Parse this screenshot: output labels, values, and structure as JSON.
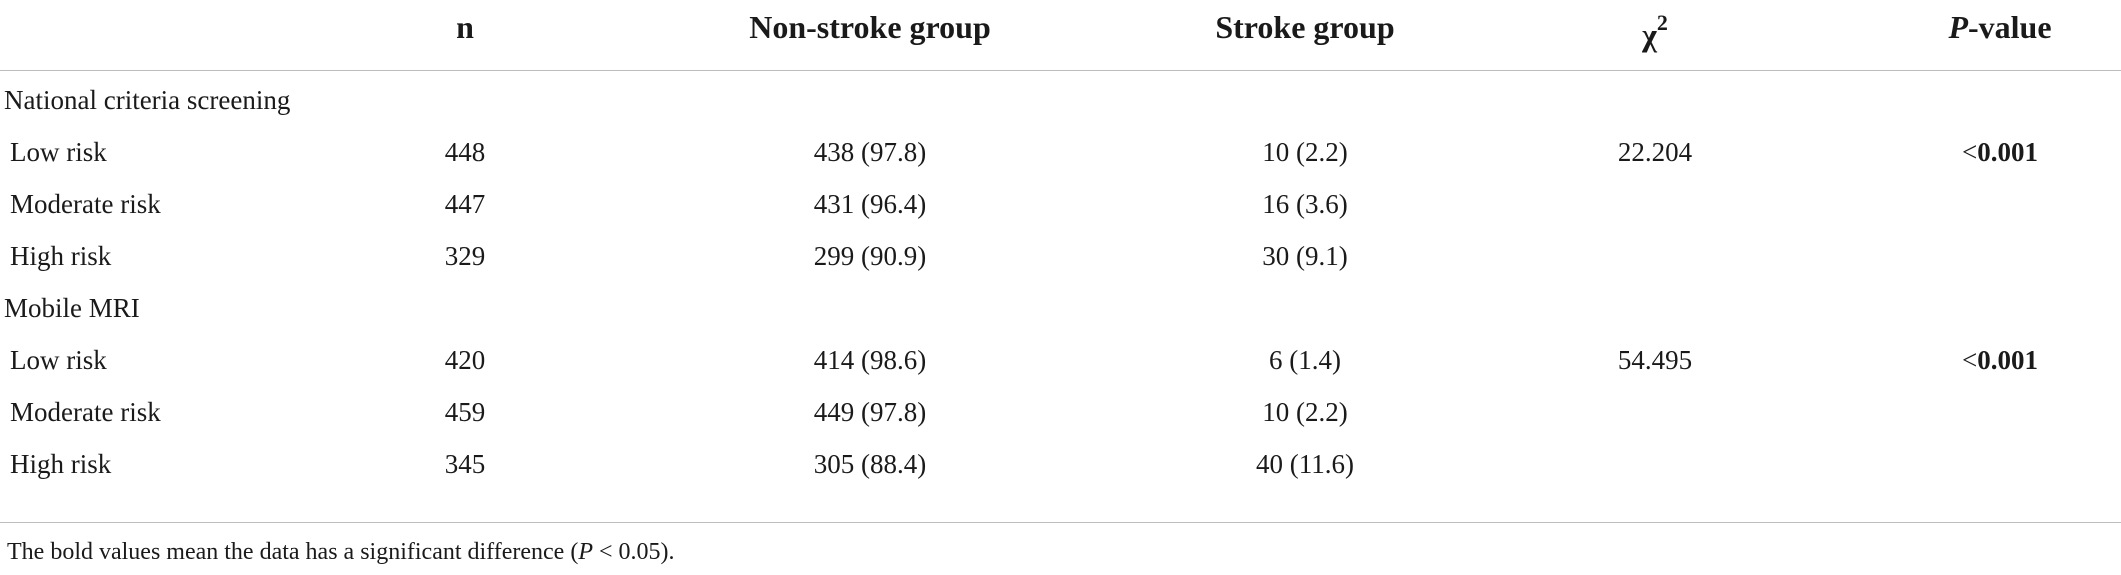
{
  "header": {
    "n": "n",
    "non_stroke": "Non-stroke group",
    "stroke": "Stroke group",
    "chi_base": "χ",
    "chi_sup": "2",
    "p_italic": "P",
    "p_rest": "-value"
  },
  "sections": [
    {
      "title": "National criteria screening",
      "rows": [
        {
          "label": "Low risk",
          "n": "448",
          "non_stroke": "438 (97.8)",
          "stroke": "10 (2.2)",
          "chi2": "22.204",
          "p_prefix": "<",
          "p_value": "0.001"
        },
        {
          "label": "Moderate risk",
          "n": "447",
          "non_stroke": "431 (96.4)",
          "stroke": "16 (3.6)",
          "chi2": "",
          "p_prefix": "",
          "p_value": ""
        },
        {
          "label": "High risk",
          "n": "329",
          "non_stroke": "299 (90.9)",
          "stroke": "30 (9.1)",
          "chi2": "",
          "p_prefix": "",
          "p_value": ""
        }
      ]
    },
    {
      "title": "Mobile MRI",
      "rows": [
        {
          "label": "Low risk",
          "n": "420",
          "non_stroke": "414 (98.6)",
          "stroke": "6 (1.4)",
          "chi2": "54.495",
          "p_prefix": "<",
          "p_value": "0.001"
        },
        {
          "label": "Moderate risk",
          "n": "459",
          "non_stroke": "449 (97.8)",
          "stroke": "10 (2.2)",
          "chi2": "",
          "p_prefix": "",
          "p_value": ""
        },
        {
          "label": "High risk",
          "n": "345",
          "non_stroke": "305 (88.4)",
          "stroke": "40 (11.6)",
          "chi2": "",
          "p_prefix": "",
          "p_value": ""
        }
      ]
    }
  ],
  "footnote": {
    "part1": "The bold values mean the data has a significant difference (",
    "p_italic": "P",
    "part2": " < 0.05)."
  }
}
